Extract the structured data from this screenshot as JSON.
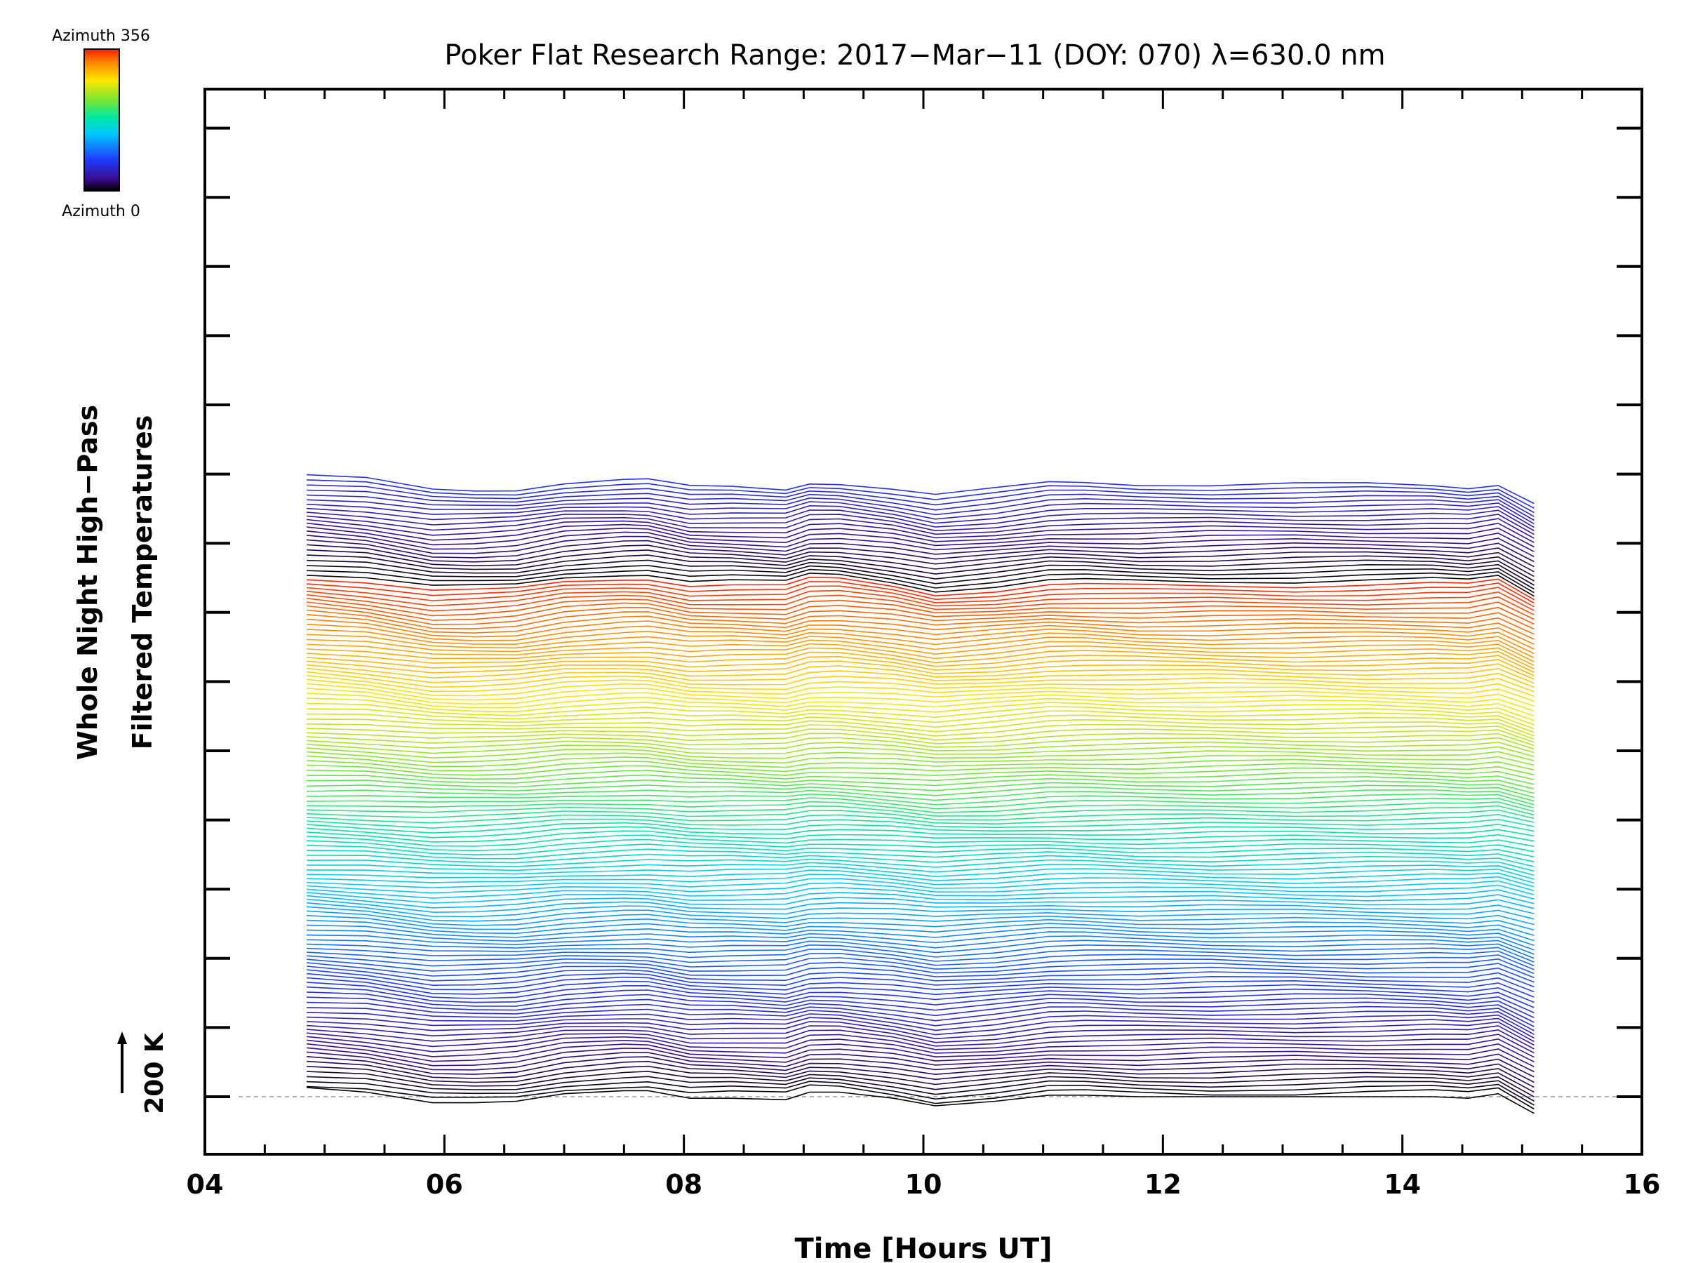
{
  "chart_data": {
    "type": "line",
    "title": "Poker Flat Research Range: 2017−Mar−11 (DOY: 070) λ=630.0 nm",
    "xlabel": "Time [Hours UT]",
    "ylabel_line1": "Whole Night High−Pass",
    "ylabel_line2": "Filtered Temperatures",
    "xlim": [
      4,
      16
    ],
    "x_ticks": [
      "04",
      "06",
      "08",
      "10",
      "12",
      "14",
      "16"
    ],
    "scale_bar_label": "200 K",
    "colorbar": {
      "top_label": "Azimuth 356",
      "bottom_label": "Azimuth 0",
      "colors": [
        "#000000",
        "#3a0a8c",
        "#1e3cff",
        "#00c8ff",
        "#00e8a0",
        "#7ae632",
        "#ffe600",
        "#ff8c00",
        "#ff1e00"
      ]
    },
    "num_traces": 142,
    "trace_spacing_per_row_K": 23,
    "azimuth_pattern": {
      "first_trace_azimuth": 0,
      "step_per_trace_deg": 3,
      "wrap_deg": 356,
      "note_reference_line": "dashed baseline at 0 K offset"
    },
    "time_hours": [
      4.85,
      5.35,
      5.9,
      6.25,
      6.6,
      7.0,
      7.5,
      7.7,
      8.05,
      8.4,
      8.85,
      9.05,
      9.3,
      9.75,
      10.1,
      10.6,
      11.05,
      11.35,
      11.8,
      12.4,
      13.1,
      13.7,
      14.25,
      14.55,
      14.8,
      15.1
    ],
    "base_profile_K": [
      12,
      6,
      -8,
      -8,
      -6,
      4,
      8,
      8,
      -2,
      -2,
      -4,
      6,
      6,
      -2,
      -12,
      -6,
      2,
      2,
      0,
      0,
      0,
      0,
      0,
      -2,
      4,
      -22
    ],
    "wave_amplitude_K": 10
  }
}
